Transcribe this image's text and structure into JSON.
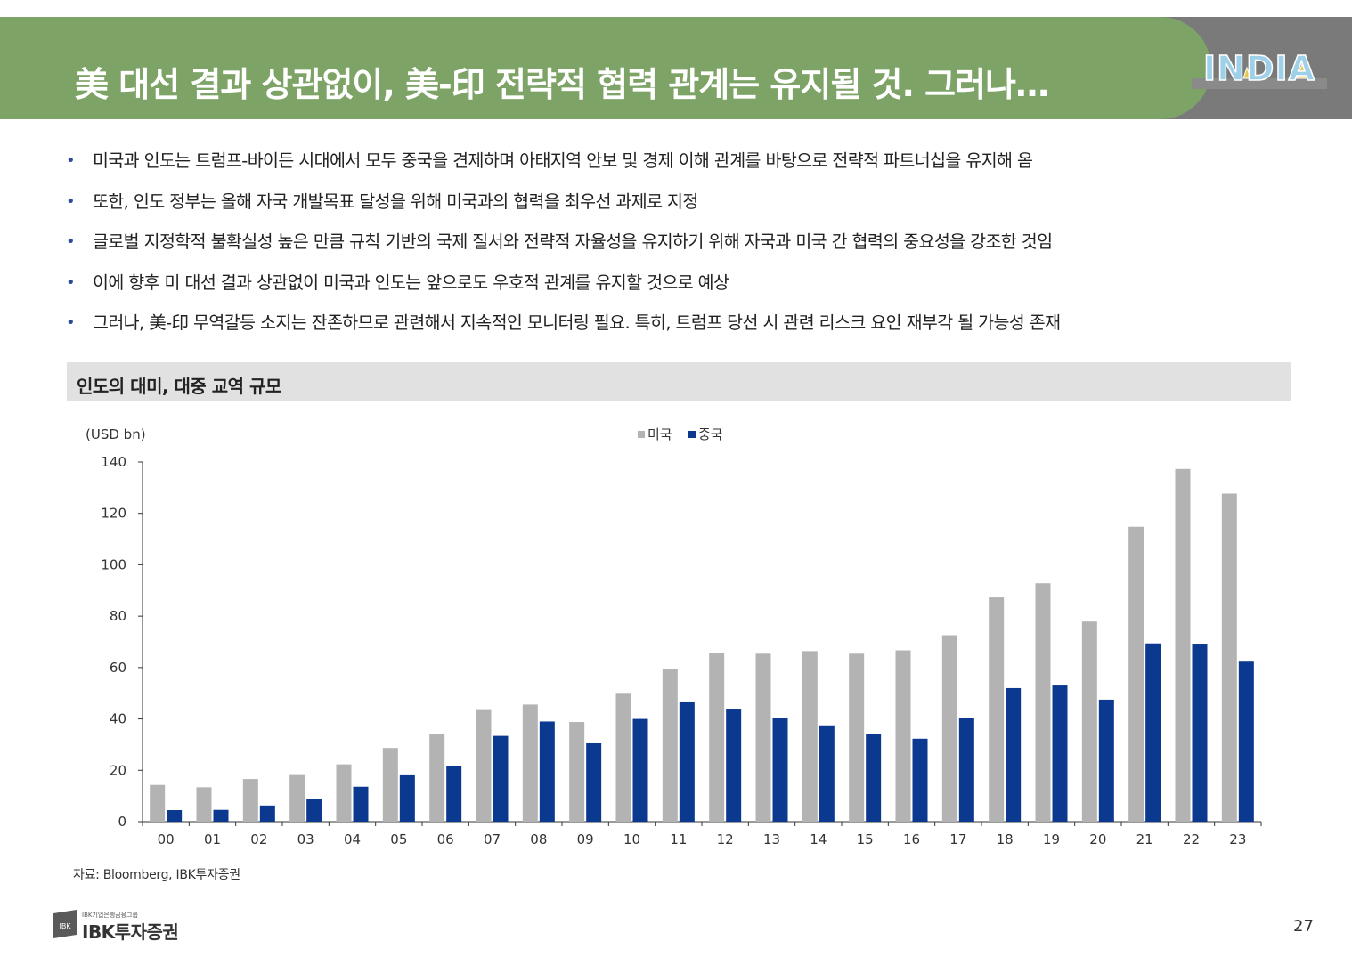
{
  "header": {
    "title": "美 대선 결과 상관없이, 美-印 전략적 협력 관계는 유지될 것. 그러나…",
    "badge_text": "INDIA"
  },
  "bullets": [
    "미국과 인도는 트럼프-바이든 시대에서 모두 중국을 견제하며 아태지역 안보 및 경제 이해 관계를 바탕으로 전략적 파트너십을 유지해 옴",
    "또한, 인도 정부는 올해 자국 개발목표 달성을 위해 미국과의 협력을 최우선 과제로 지정",
    "글로벌 지정학적 불확실성 높은 만큼 규칙 기반의 국제 질서와 전략적 자율성을 유지하기 위해 자국과 미국 간 협력의 중요성을 강조한 것임",
    "이에 향후 미 대선 결과 상관없이 미국과 인도는 앞으로도 우호적 관계를 유지할 것으로 예상",
    "그러나, 美-印 무역갈등 소지는 잔존하므로 관련해서 지속적인 모니터링 필요. 특히, 트럼프 당선 시 관련 리스크 요인 재부각 될 가능성 존재"
  ],
  "section": {
    "title": "인도의 대미, 대중 교역 규모"
  },
  "chart_data": {
    "type": "bar",
    "title": "",
    "ylabel": "(USD bn)",
    "xlabel": "",
    "ylim": [
      0,
      140
    ],
    "yticks": [
      0,
      20,
      40,
      60,
      80,
      100,
      120,
      140
    ],
    "legend_position": "top-center",
    "categories": [
      "00",
      "01",
      "02",
      "03",
      "04",
      "05",
      "06",
      "07",
      "08",
      "09",
      "10",
      "11",
      "12",
      "13",
      "14",
      "15",
      "16",
      "17",
      "18",
      "19",
      "20",
      "21",
      "22",
      "23"
    ],
    "series": [
      {
        "name": "미국",
        "color": "#b3b3b3",
        "values": [
          14.3,
          13.4,
          16.6,
          18.5,
          22.3,
          28.7,
          34.3,
          43.8,
          45.6,
          38.8,
          49.8,
          59.6,
          65.7,
          65.4,
          66.4,
          65.4,
          66.7,
          72.6,
          87.3,
          92.8,
          77.9,
          114.8,
          137.3,
          127.7
        ]
      },
      {
        "name": "중국",
        "color": "#0b3990",
        "values": [
          4.5,
          4.6,
          6.3,
          9.0,
          13.6,
          18.4,
          21.6,
          33.4,
          39.0,
          30.5,
          40.0,
          46.8,
          44.0,
          40.5,
          37.5,
          34.1,
          32.3,
          40.5,
          52.0,
          53.0,
          47.5,
          69.4,
          69.3,
          62.3
        ]
      }
    ]
  },
  "source": "자료: Bloomberg, IBK투자증권",
  "footer": {
    "logo_small": "IBK기업은행금융그룹",
    "logo_text": "IBK투자증권",
    "logo_mark": "IBK",
    "page_number": "27"
  }
}
